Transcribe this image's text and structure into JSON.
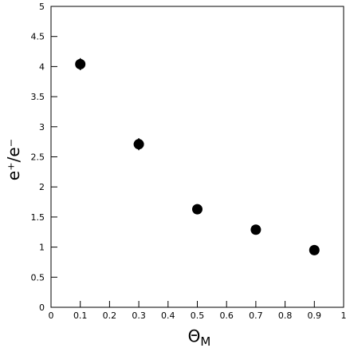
{
  "chart_data": {
    "type": "scatter",
    "xlabel": [
      "Θ",
      "M"
    ],
    "ylabel": "e⁺/e⁻",
    "x": [
      0.1,
      0.3,
      0.5,
      0.7,
      0.9
    ],
    "series": [
      {
        "values": [
          4.04,
          2.71,
          1.63,
          1.29,
          0.95
        ],
        "errors": [
          0.1,
          0.1,
          0.05,
          0.05,
          0.05
        ],
        "color": "#000000"
      }
    ],
    "xlim": [
      0,
      1
    ],
    "xticks": [
      0,
      0.1,
      0.2,
      0.3,
      0.4,
      0.5,
      0.6,
      0.7,
      0.8,
      0.9,
      1
    ],
    "ylim": [
      0,
      5
    ],
    "yticks": [
      0,
      0.5,
      1,
      1.5,
      2,
      2.5,
      3,
      3.5,
      4,
      4.5,
      5
    ]
  }
}
